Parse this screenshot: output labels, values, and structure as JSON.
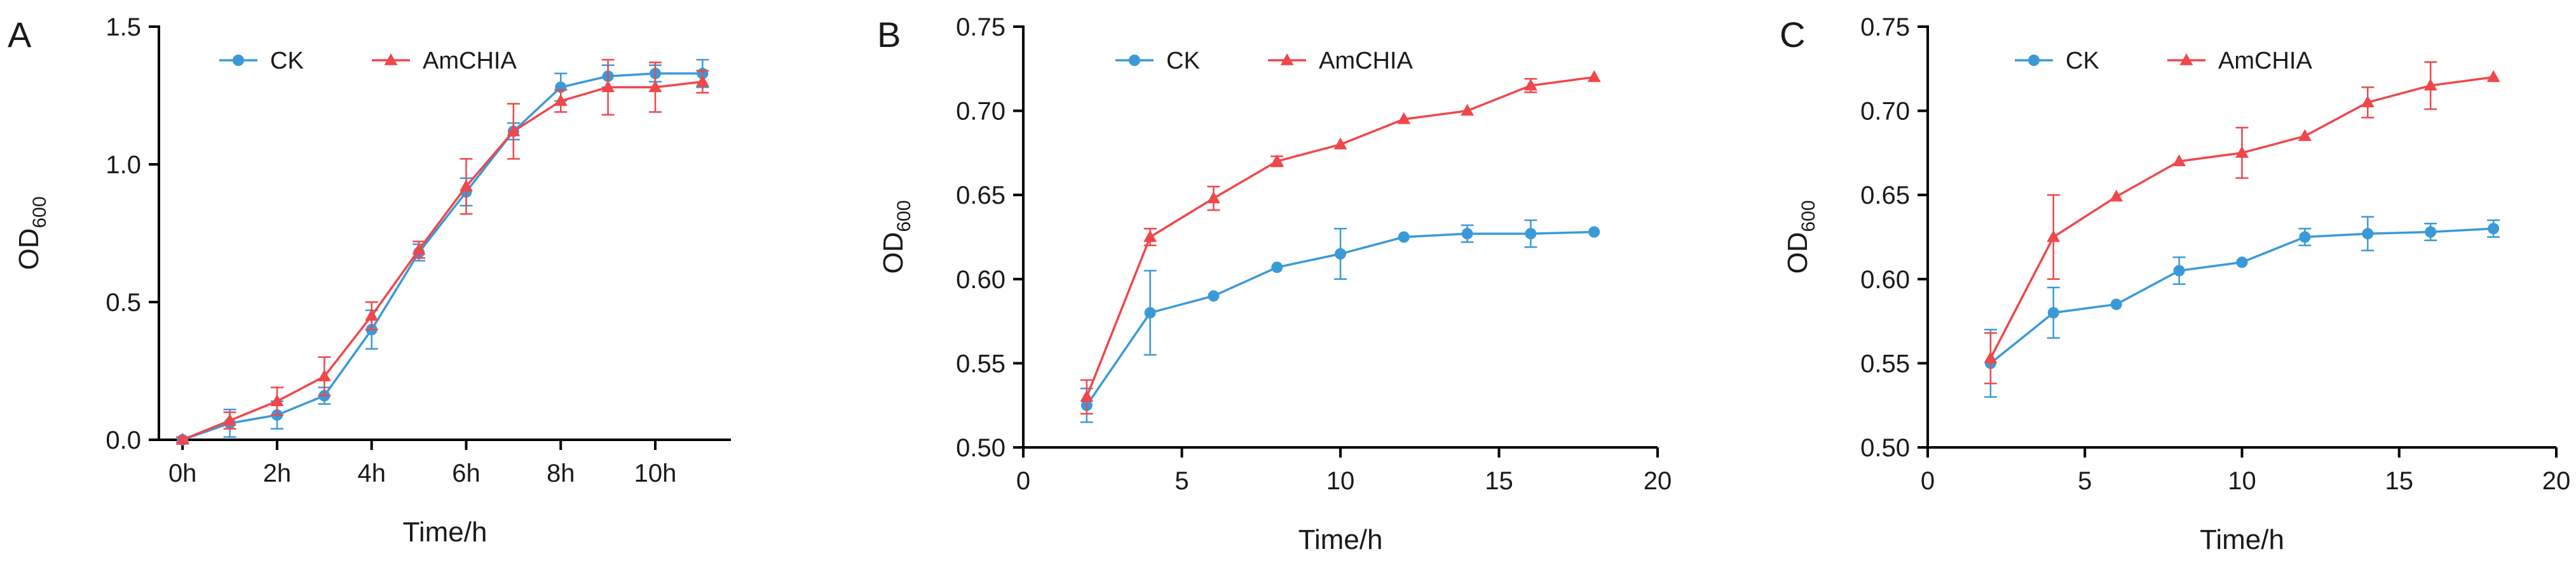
{
  "chart_data": [
    {
      "panel": "A",
      "type": "line",
      "xlabel": "Time/h",
      "ylabel": "OD",
      "ylabel_sub": "600",
      "xlim": [
        -0.5,
        11.6
      ],
      "ylim": [
        0,
        1.5
      ],
      "xticks": [
        0,
        2,
        4,
        6,
        8,
        10
      ],
      "xtick_labels": [
        "0h",
        "2h",
        "4h",
        "6h",
        "8h",
        "10h"
      ],
      "yticks": [
        0,
        0.5,
        1.0,
        1.5
      ],
      "ytick_labels": [
        "0.0",
        "0.5",
        "1.0",
        "1.5"
      ],
      "legend": [
        "CK",
        "AmCHIA"
      ],
      "series": [
        {
          "name": "CK",
          "color": "#3a9ad9",
          "marker": "circle",
          "x": [
            0,
            1,
            2,
            3,
            4,
            5,
            6,
            7,
            8,
            9,
            10,
            11
          ],
          "y": [
            0.0,
            0.06,
            0.09,
            0.16,
            0.4,
            0.68,
            0.9,
            1.12,
            1.28,
            1.32,
            1.33,
            1.33
          ],
          "err": [
            0.01,
            0.05,
            0.05,
            0.03,
            0.07,
            0.03,
            0.05,
            0.03,
            0.05,
            0.04,
            0.03,
            0.05
          ]
        },
        {
          "name": "AmCHIA",
          "color": "#f0474b",
          "marker": "triangle",
          "x": [
            0,
            1,
            2,
            3,
            4,
            5,
            6,
            7,
            8,
            9,
            10,
            11
          ],
          "y": [
            0.0,
            0.07,
            0.14,
            0.23,
            0.45,
            0.69,
            0.92,
            1.12,
            1.23,
            1.28,
            1.28,
            1.3
          ],
          "err": [
            0.01,
            0.03,
            0.05,
            0.07,
            0.05,
            0.03,
            0.1,
            0.1,
            0.04,
            0.1,
            0.09,
            0.04
          ]
        }
      ]
    },
    {
      "panel": "B",
      "type": "line",
      "xlabel": "Time/h",
      "ylabel": "OD",
      "ylabel_sub": "600",
      "xlim": [
        0,
        20
      ],
      "ylim": [
        0.5,
        0.75
      ],
      "xticks": [
        0,
        5,
        10,
        15,
        20
      ],
      "xtick_labels": [
        "0",
        "5",
        "10",
        "15",
        "20"
      ],
      "yticks": [
        0.5,
        0.55,
        0.6,
        0.65,
        0.7,
        0.75
      ],
      "ytick_labels": [
        "0.50",
        "0.55",
        "0.60",
        "0.65",
        "0.70",
        "0.75"
      ],
      "legend": [
        "CK",
        "AmCHIA"
      ],
      "series": [
        {
          "name": "CK",
          "color": "#3a9ad9",
          "marker": "circle",
          "x": [
            2,
            4,
            6,
            8,
            10,
            12,
            14,
            16,
            18
          ],
          "y": [
            0.525,
            0.58,
            0.59,
            0.607,
            0.615,
            0.625,
            0.627,
            0.627,
            0.628
          ],
          "err": [
            0.01,
            0.025,
            0,
            0,
            0.015,
            0,
            0.005,
            0.008,
            0
          ]
        },
        {
          "name": "AmCHIA",
          "color": "#f0474b",
          "marker": "triangle",
          "x": [
            2,
            4,
            6,
            8,
            10,
            12,
            14,
            16,
            18
          ],
          "y": [
            0.53,
            0.625,
            0.648,
            0.67,
            0.68,
            0.695,
            0.7,
            0.715,
            0.72
          ],
          "err": [
            0.01,
            0.005,
            0.007,
            0.003,
            0,
            0,
            0,
            0.004,
            0
          ]
        }
      ]
    },
    {
      "panel": "C",
      "type": "line",
      "xlabel": "Time/h",
      "ylabel": "OD",
      "ylabel_sub": "600",
      "xlim": [
        0,
        20
      ],
      "ylim": [
        0.5,
        0.75
      ],
      "xticks": [
        0,
        5,
        10,
        15,
        20
      ],
      "xtick_labels": [
        "0",
        "5",
        "10",
        "15",
        "20"
      ],
      "yticks": [
        0.5,
        0.55,
        0.6,
        0.65,
        0.7,
        0.75
      ],
      "ytick_labels": [
        "0.50",
        "0.55",
        "0.60",
        "0.65",
        "0.70",
        "0.75"
      ],
      "legend": [
        "CK",
        "AmCHIA"
      ],
      "series": [
        {
          "name": "CK",
          "color": "#3a9ad9",
          "marker": "circle",
          "x": [
            2,
            4,
            6,
            8,
            10,
            12,
            14,
            16,
            18
          ],
          "y": [
            0.55,
            0.58,
            0.585,
            0.605,
            0.61,
            0.625,
            0.627,
            0.628,
            0.63
          ],
          "err": [
            0.02,
            0.015,
            0,
            0.008,
            0,
            0.005,
            0.01,
            0.005,
            0.005
          ]
        },
        {
          "name": "AmCHIA",
          "color": "#f0474b",
          "marker": "triangle",
          "x": [
            2,
            4,
            6,
            8,
            10,
            12,
            14,
            16,
            18
          ],
          "y": [
            0.553,
            0.625,
            0.649,
            0.67,
            0.675,
            0.685,
            0.705,
            0.715,
            0.72
          ],
          "err": [
            0.015,
            0.025,
            0,
            0,
            0.015,
            0,
            0.009,
            0.014,
            0
          ]
        }
      ]
    }
  ]
}
